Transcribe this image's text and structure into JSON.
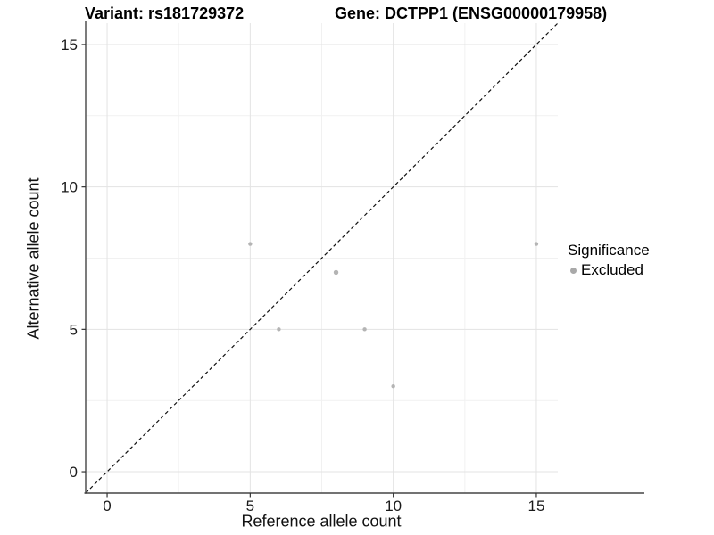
{
  "title": {
    "variant": "Variant: rs181729372",
    "gene": "Gene: DCTPP1 (ENSG00000179958)"
  },
  "chart_data": {
    "type": "scatter",
    "xlabel": "Reference allele count",
    "ylabel": "Alternative allele count",
    "xlim": [
      -0.75,
      15.75
    ],
    "ylim": [
      -0.75,
      15.75
    ],
    "x_ticks": [
      0,
      5,
      10,
      15
    ],
    "y_ticks": [
      0,
      5,
      10,
      15
    ],
    "x_minor_gridlines": [
      2.5,
      7.5,
      12.5
    ],
    "y_minor_gridlines": [
      2.5,
      7.5,
      12.5
    ],
    "grid": "major and minor gridlines on white background",
    "series": [
      {
        "name": "Excluded",
        "color": "#b4b4b4",
        "points": [
          {
            "x": 5,
            "y": 8,
            "r": 2.2
          },
          {
            "x": 6,
            "y": 5,
            "r": 2.2
          },
          {
            "x": 8,
            "y": 7,
            "r": 2.7
          },
          {
            "x": 9,
            "y": 5,
            "r": 2.2
          },
          {
            "x": 10,
            "y": 3,
            "r": 2.2
          },
          {
            "x": 15,
            "y": 8,
            "r": 2.2
          }
        ]
      }
    ],
    "reference_line": {
      "type": "identity",
      "slope": 1,
      "intercept": 0,
      "style": "dashed",
      "color": "#111111"
    },
    "legend": {
      "title": "Significance",
      "position": "right",
      "items": [
        {
          "label": "Excluded",
          "color": "#a9a9a9"
        }
      ]
    },
    "colors": {
      "grid_major": "#e3e3e3",
      "grid_minor": "#f1f1f1",
      "axis_line": "#454545",
      "tick_mark": "#333333",
      "tick_text": "#1a1a1a",
      "background": "#ffffff"
    }
  }
}
